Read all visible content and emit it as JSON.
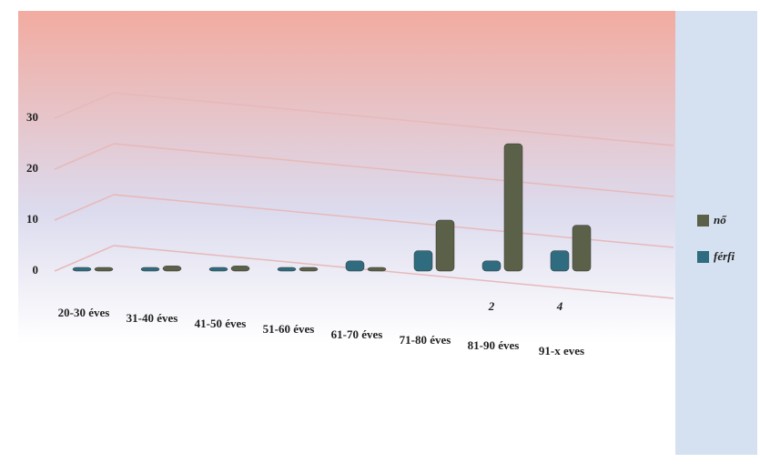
{
  "chart_data": {
    "type": "bar",
    "categories": [
      "20-30 éves",
      "31-40 éves",
      "41-50 éves",
      "51-60 éves",
      "61-70 éves",
      "71-80 éves",
      "81-90 éves",
      "91-x eves"
    ],
    "series": [
      {
        "name": "nő",
        "color": "#5b6149",
        "values": [
          0,
          1,
          1,
          0,
          0,
          10,
          25,
          9
        ]
      },
      {
        "name": "férfi",
        "color": "#2f6c80",
        "values": [
          0,
          0,
          0,
          0,
          2,
          4,
          2,
          4
        ],
        "value_labels": [
          null,
          null,
          null,
          null,
          null,
          null,
          "2",
          "4"
        ]
      }
    ],
    "ylim": [
      0,
      30
    ],
    "yticks": [
      0,
      10,
      20,
      30
    ],
    "grid": true,
    "legend": "right"
  }
}
